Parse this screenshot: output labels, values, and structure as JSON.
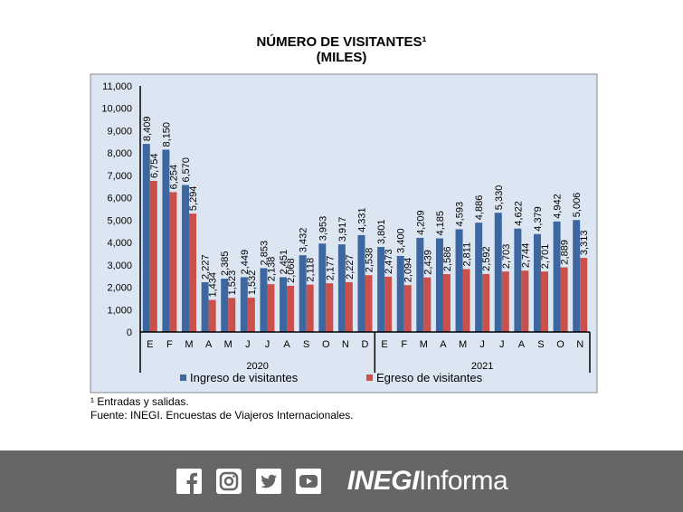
{
  "chart_data": {
    "type": "bar",
    "title": "NÚMERO DE VISITANTES¹",
    "subtitle": "(MILES)",
    "categories": [
      "E",
      "F",
      "M",
      "A",
      "M",
      "J",
      "J",
      "A",
      "S",
      "O",
      "N",
      "D",
      "E",
      "F",
      "M",
      "A",
      "M",
      "J",
      "J",
      "A",
      "S",
      "O",
      "N"
    ],
    "groups": [
      {
        "label": "2020",
        "count": 12
      },
      {
        "label": "2021",
        "count": 11
      }
    ],
    "series": [
      {
        "name": "Ingreso de visitantes",
        "color": "#3d67a0",
        "values": [
          8409,
          8150,
          6570,
          2227,
          2385,
          2449,
          2853,
          2451,
          3432,
          3953,
          3917,
          4331,
          3801,
          3400,
          4209,
          4185,
          4593,
          4886,
          5330,
          4622,
          4379,
          4942,
          5006
        ]
      },
      {
        "name": "Egreso de visitantes",
        "color": "#c9504b",
        "values": [
          6754,
          6254,
          5294,
          1434,
          1523,
          1532,
          2138,
          2068,
          2118,
          2177,
          2227,
          2538,
          2473,
          2094,
          2439,
          2586,
          2811,
          2592,
          2703,
          2744,
          2701,
          2889,
          3313
        ]
      }
    ],
    "ylim": [
      0,
      11000
    ],
    "yticks": [
      0,
      1000,
      2000,
      3000,
      4000,
      5000,
      6000,
      7000,
      8000,
      9000,
      10000,
      11000
    ],
    "legend": "bottom",
    "background": "#dce6f2"
  },
  "notes": {
    "footnote": "¹ Entradas y salidas.",
    "source": "Fuente: INEGI. Encuestas de Viajeros Internacionales."
  },
  "banner": {
    "brand_bold": "INEGI",
    "brand_light": "Informa",
    "icons": [
      "facebook-icon",
      "instagram-icon",
      "twitter-icon",
      "youtube-icon"
    ]
  }
}
